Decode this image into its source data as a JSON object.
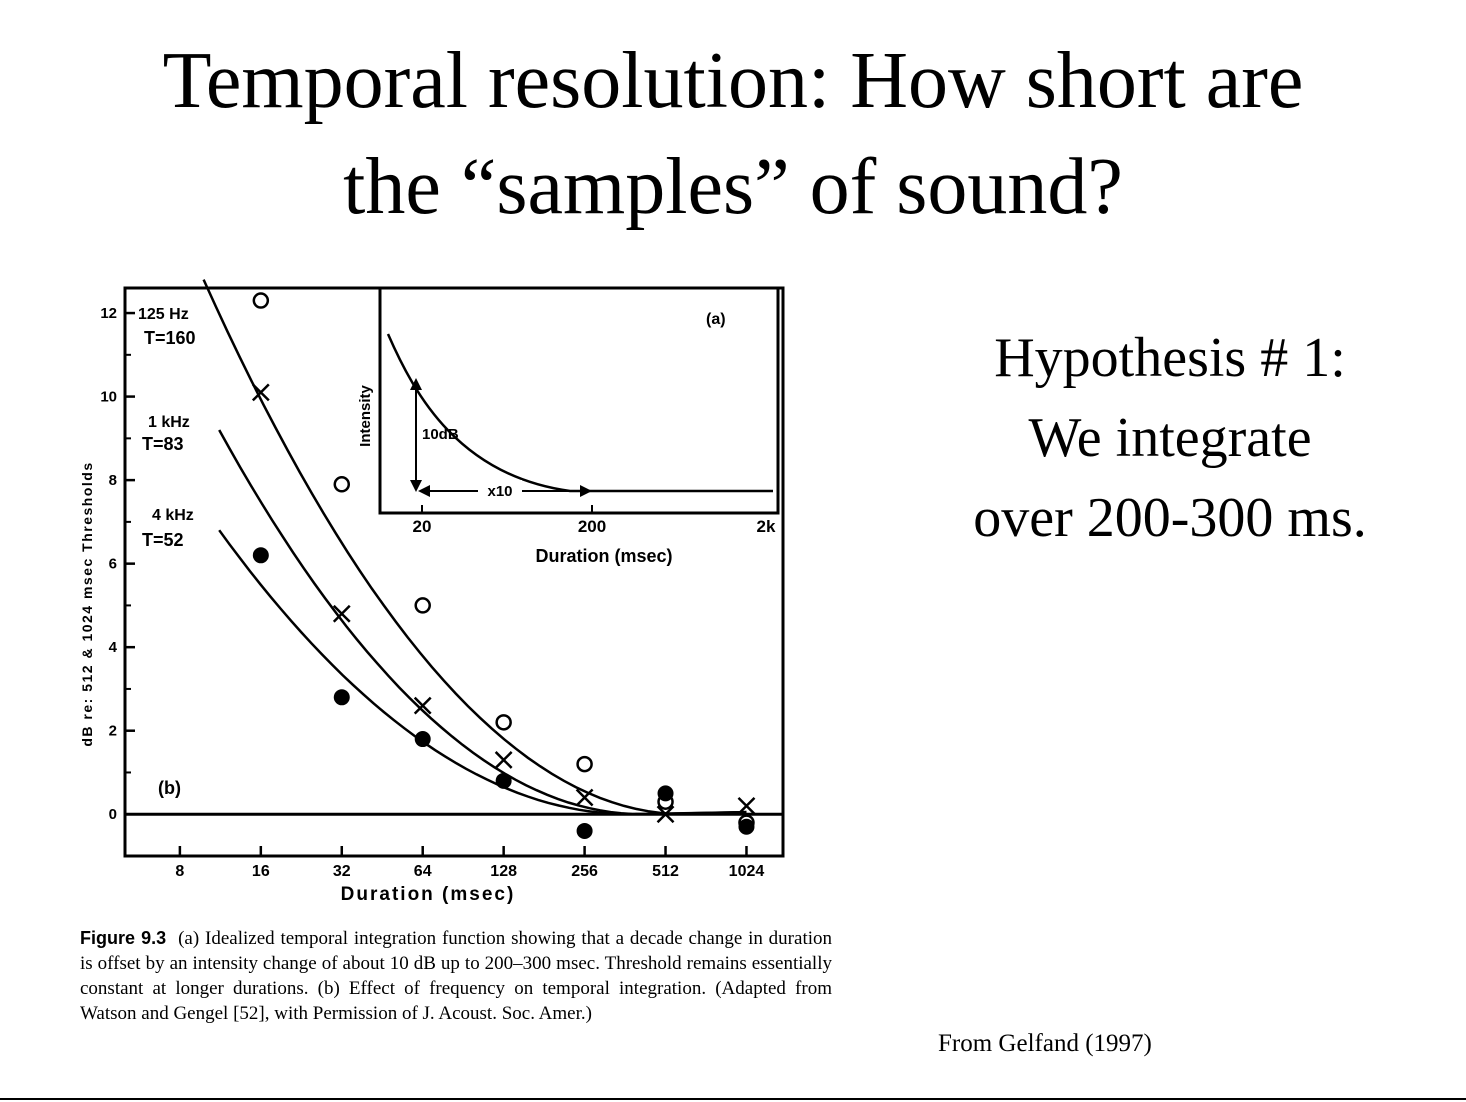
{
  "slide": {
    "title_line1": "Temporal resolution: How short are",
    "title_line2": "the “samples” of sound?",
    "hypothesis_line1": "Hypothesis # 1:",
    "hypothesis_line2": "We integrate",
    "hypothesis_line3": "over 200-300 ms.",
    "source": "From Gelfand (1997)"
  },
  "caption": {
    "label": "Figure 9.3",
    "text": "(a) Idealized temporal integration function showing that a decade change in duration is offset by an intensity change of about 10 dB up to 200–300 msec. Threshold remains essentially constant at longer durations. (b) Effect of frequency on temporal integration. (Adapted from Watson and Gengel [52], with Permission of J. Acoust. Soc. Amer.)"
  },
  "chart_data": [
    {
      "type": "scatter",
      "panel_label": "(b)",
      "xlabel": "Duration (msec)",
      "ylabel": "dB re: 512 & 1024 msec Thresholds",
      "x_scale": "log2",
      "x_ticks": [
        8,
        16,
        32,
        64,
        128,
        256,
        512,
        1024
      ],
      "y_ticks": [
        0,
        2,
        4,
        6,
        8,
        10,
        12
      ],
      "xlim": [
        5,
        1400
      ],
      "ylim": [
        -1,
        12.6
      ],
      "series": [
        {
          "name": "125 Hz",
          "curve_label": "T=160",
          "marker": "open-circle",
          "x": [
            16,
            32,
            64,
            128,
            256,
            512,
            1024
          ],
          "y": [
            12.3,
            7.9,
            5.0,
            2.2,
            1.2,
            0.3,
            -0.2
          ]
        },
        {
          "name": "1 kHz",
          "curve_label": "T=83",
          "marker": "cross",
          "x": [
            16,
            32,
            64,
            128,
            256,
            512,
            1024
          ],
          "y": [
            10.1,
            4.8,
            2.6,
            1.3,
            0.4,
            0.0,
            0.2
          ]
        },
        {
          "name": "4 kHz",
          "curve_label": "T=52",
          "marker": "filled-circle",
          "x": [
            16,
            32,
            64,
            128,
            256,
            512,
            1024
          ],
          "y": [
            6.2,
            2.8,
            1.8,
            0.8,
            -0.4,
            0.5,
            -0.3
          ]
        }
      ]
    },
    {
      "type": "line",
      "panel_label": "(a)",
      "xlabel": "Duration (msec)",
      "ylabel": "Intensity",
      "x_scale": "log10",
      "x_ticks": [
        "20",
        "200",
        "2k"
      ],
      "annotations": [
        "10dB",
        "x10"
      ],
      "curve": [
        [
          20,
          10
        ],
        [
          200,
          0
        ],
        [
          2000,
          0
        ]
      ]
    }
  ]
}
